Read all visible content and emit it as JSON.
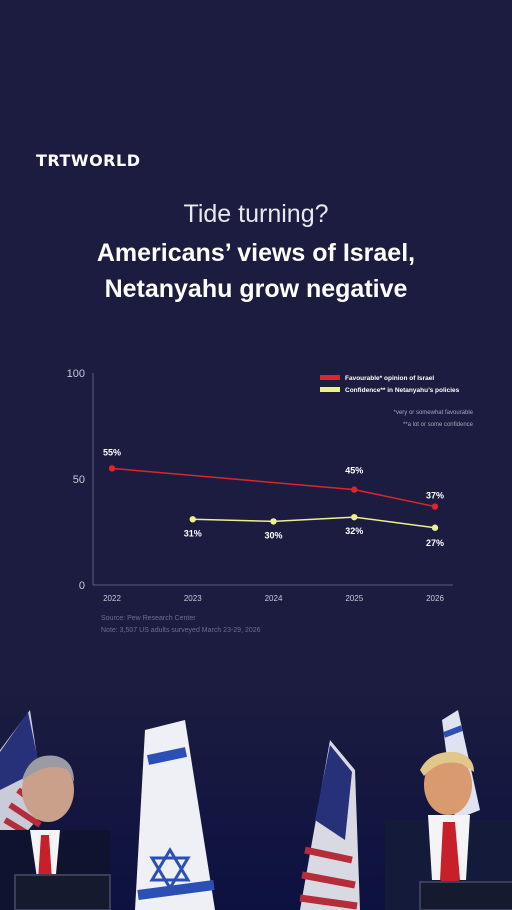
{
  "brand": {
    "logo_text": "TRTWORLD"
  },
  "header": {
    "subtitle": "Tide turning?",
    "title_line1": "Americans’ views of Israel,",
    "title_line2": "Netanyahu grow negative"
  },
  "chart_data": {
    "type": "line",
    "x": [
      "2022",
      "2023",
      "2024",
      "2025",
      "2026"
    ],
    "ylim": [
      0,
      100
    ],
    "yticks": [
      0,
      50,
      100
    ],
    "series": [
      {
        "name": "Favourable* opinion of Israel",
        "color": "#e0242e",
        "values": [
          55,
          null,
          null,
          45,
          37
        ],
        "labels": [
          "55%",
          null,
          null,
          "45%",
          "37%"
        ]
      },
      {
        "name": "Confidence** in Netanyahu’s policies",
        "color": "#eef08a",
        "values": [
          null,
          31,
          30,
          32,
          27
        ],
        "labels": [
          null,
          "31%",
          "30%",
          "32%",
          "27%"
        ]
      }
    ],
    "legend_position": "top-right",
    "footnotes": [
      "*very or somewhat favourable",
      "**a lot or some confidence"
    ],
    "grid": false
  },
  "footer": {
    "source": "Source: Pew Research Center",
    "note": "Note: 3,507 US adults surveyed March 23-29, 2026"
  },
  "colors": {
    "background": "#1b1c3f",
    "israel_line": "#e0242e",
    "netanyahu_line": "#eef08a"
  }
}
